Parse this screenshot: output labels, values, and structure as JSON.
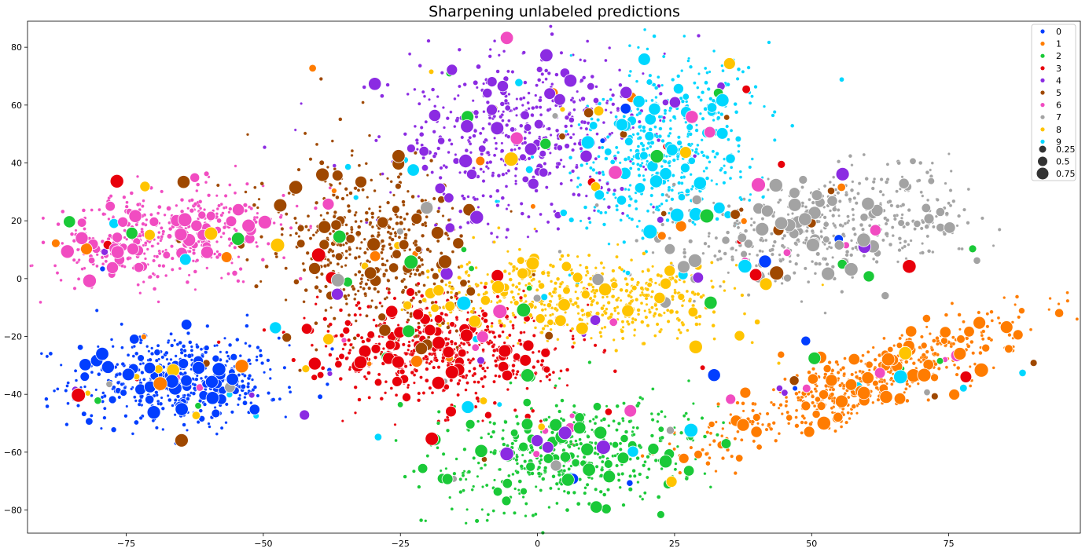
{
  "chart_data": {
    "type": "scatter",
    "title": "Sharpening unlabeled predictions",
    "xlabel": "",
    "ylabel": "",
    "xlim": [
      -93,
      99
    ],
    "ylim": [
      -88,
      89
    ],
    "xticks": [
      -75,
      -50,
      -25,
      0,
      25,
      50,
      75
    ],
    "yticks": [
      -80,
      -60,
      -40,
      -20,
      0,
      20,
      40,
      60,
      80
    ],
    "grid": false,
    "legend_position": "top-right",
    "hue_legend": [
      "0",
      "1",
      "2",
      "3",
      "4",
      "5",
      "6",
      "7",
      "8",
      "9"
    ],
    "size_legend": [
      {
        "label": "0.25",
        "value": 0.25
      },
      {
        "label": "0.5",
        "value": 0.5
      },
      {
        "label": "0.75",
        "value": 0.75
      }
    ],
    "colors": [
      "#023eff",
      "#ff7c00",
      "#1ac938",
      "#e8000b",
      "#8b2be2",
      "#9f4800",
      "#f14cc1",
      "#a3a3a3",
      "#ffc400",
      "#00d7ff"
    ],
    "clusters": [
      {
        "label": "0",
        "cx": -66,
        "cy": -35,
        "sx": 9.5,
        "sy": 8,
        "rot": 0,
        "n": 520
      },
      {
        "label": "1",
        "cx": 60,
        "cy": -35,
        "sx": 19,
        "sy": 4.5,
        "rot": 38,
        "n": 560
      },
      {
        "label": "2",
        "cx": 5,
        "cy": -60,
        "sx": 13,
        "sy": 9,
        "rot": 25,
        "n": 470
      },
      {
        "label": "3",
        "cx": -17,
        "cy": -25,
        "sx": 12,
        "sy": 9,
        "rot": -10,
        "n": 560
      },
      {
        "label": "4",
        "cx": -2,
        "cy": 50,
        "sx": 12,
        "sy": 14,
        "rot": -20,
        "n": 520
      },
      {
        "label": "5",
        "cx": -30,
        "cy": 10,
        "sx": 8.5,
        "sy": 18,
        "rot": 15,
        "n": 500
      },
      {
        "label": "6",
        "cx": -68,
        "cy": 15,
        "sx": 12,
        "sy": 7,
        "rot": 20,
        "n": 450
      },
      {
        "label": "7",
        "cx": 52,
        "cy": 18,
        "sx": 14,
        "sy": 9,
        "rot": 20,
        "n": 520
      },
      {
        "label": "8",
        "cx": 8,
        "cy": -6,
        "sx": 14,
        "sy": 7,
        "rot": -5,
        "n": 520
      },
      {
        "label": "9",
        "cx": 24,
        "cy": 45,
        "sx": 8.5,
        "sy": 15,
        "rot": -10,
        "n": 480
      }
    ]
  }
}
